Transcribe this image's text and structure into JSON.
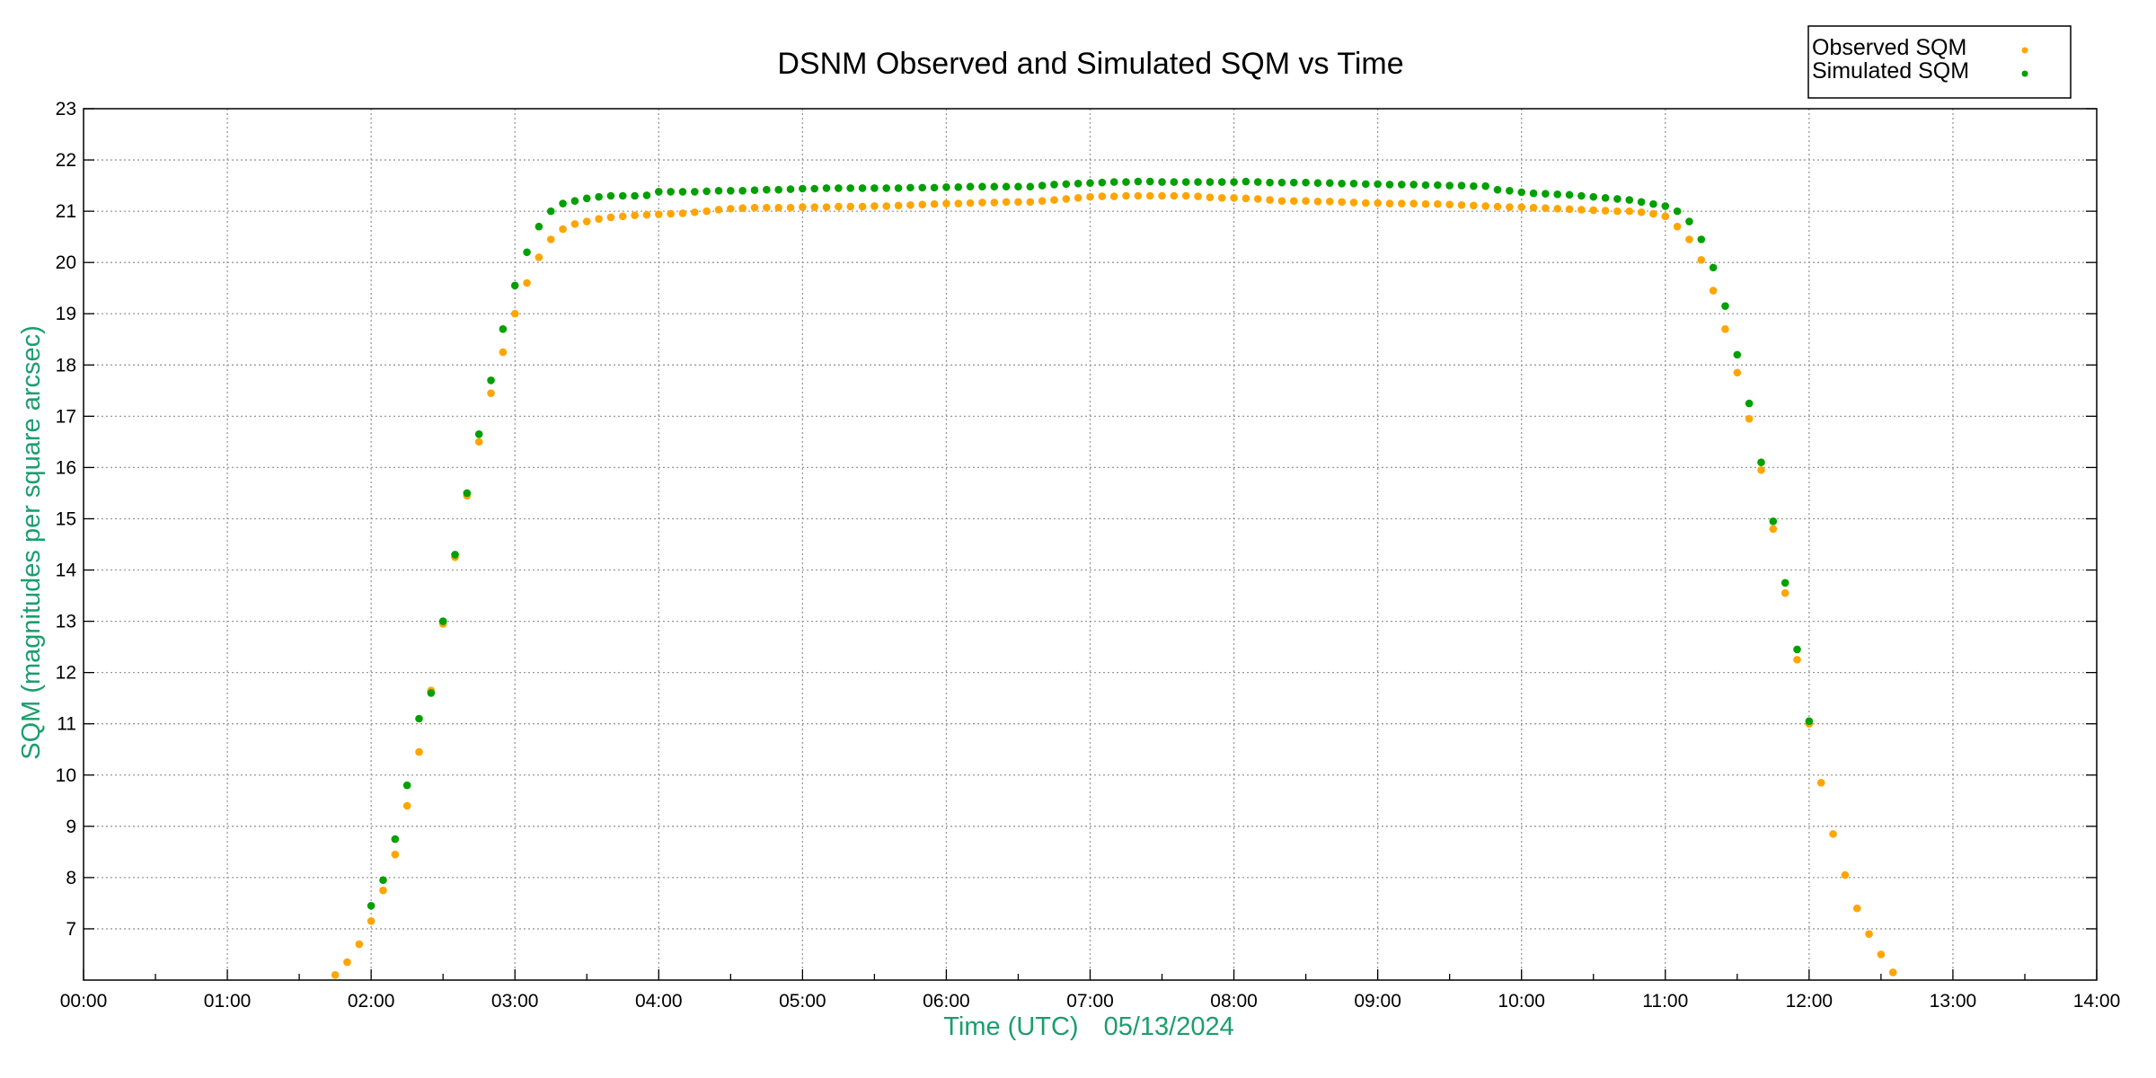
{
  "chart_data": {
    "type": "scatter",
    "title": "DSNM Observed and Simulated SQM vs Time",
    "xlabel": "Time (UTC)",
    "xlabel_date": "05/13/2024",
    "ylabel": "SQM (magnitudes per square arcsec)",
    "xlim": [
      "00:00",
      "14:00"
    ],
    "ylim": [
      6,
      23
    ],
    "x_ticks": [
      "00:00",
      "01:00",
      "02:00",
      "03:00",
      "04:00",
      "05:00",
      "06:00",
      "07:00",
      "08:00",
      "09:00",
      "10:00",
      "11:00",
      "12:00",
      "13:00",
      "14:00"
    ],
    "y_ticks": [
      "7",
      "8",
      "9",
      "10",
      "11",
      "12",
      "13",
      "14",
      "15",
      "16",
      "17",
      "18",
      "19",
      "20",
      "21",
      "22",
      "23"
    ],
    "grid": true,
    "legend_position": "top-right",
    "x": [
      "01:45",
      "01:50",
      "01:55",
      "02:00",
      "02:05",
      "02:10",
      "02:15",
      "02:20",
      "02:25",
      "02:30",
      "02:35",
      "02:40",
      "02:45",
      "02:50",
      "02:55",
      "03:00",
      "03:05",
      "03:10",
      "03:15",
      "03:20",
      "03:25",
      "03:30",
      "03:35",
      "03:40",
      "03:45",
      "03:50",
      "03:55",
      "04:00",
      "04:05",
      "04:10",
      "04:15",
      "04:20",
      "04:25",
      "04:30",
      "04:35",
      "04:40",
      "04:45",
      "04:50",
      "04:55",
      "05:00",
      "05:05",
      "05:10",
      "05:15",
      "05:20",
      "05:25",
      "05:30",
      "05:35",
      "05:40",
      "05:45",
      "05:50",
      "05:55",
      "06:00",
      "06:05",
      "06:10",
      "06:15",
      "06:20",
      "06:25",
      "06:30",
      "06:35",
      "06:40",
      "06:45",
      "06:50",
      "06:55",
      "07:00",
      "07:05",
      "07:10",
      "07:15",
      "07:20",
      "07:25",
      "07:30",
      "07:35",
      "07:40",
      "07:45",
      "07:50",
      "07:55",
      "08:00",
      "08:05",
      "08:10",
      "08:15",
      "08:20",
      "08:25",
      "08:30",
      "08:35",
      "08:40",
      "08:45",
      "08:50",
      "08:55",
      "09:00",
      "09:05",
      "09:10",
      "09:15",
      "09:20",
      "09:25",
      "09:30",
      "09:35",
      "09:40",
      "09:45",
      "09:50",
      "09:55",
      "10:00",
      "10:05",
      "10:10",
      "10:15",
      "10:20",
      "10:25",
      "10:30",
      "10:35",
      "10:40",
      "10:45",
      "10:50",
      "10:55",
      "11:00",
      "11:05",
      "11:10",
      "11:15",
      "11:20",
      "11:25",
      "11:30",
      "11:35",
      "11:40",
      "11:45",
      "11:50",
      "11:55",
      "12:00",
      "12:05",
      "12:10",
      "12:15",
      "12:20",
      "12:25",
      "12:30",
      "12:35"
    ],
    "series": [
      {
        "name": "Observed SQM",
        "color": "#ffa500",
        "values": [
          6.1,
          6.35,
          6.7,
          7.15,
          7.75,
          8.45,
          9.4,
          10.45,
          11.65,
          12.95,
          14.25,
          15.45,
          16.5,
          17.45,
          18.25,
          19.0,
          19.6,
          20.1,
          20.45,
          20.65,
          20.75,
          20.8,
          20.85,
          20.88,
          20.9,
          20.92,
          20.93,
          20.94,
          20.95,
          20.96,
          20.98,
          21.0,
          21.03,
          21.05,
          21.06,
          21.07,
          21.07,
          21.07,
          21.07,
          21.08,
          21.08,
          21.08,
          21.09,
          21.09,
          21.09,
          21.1,
          21.1,
          21.11,
          21.12,
          21.13,
          21.14,
          21.15,
          21.15,
          21.16,
          21.17,
          21.17,
          21.18,
          21.18,
          21.18,
          21.2,
          21.22,
          21.24,
          21.26,
          21.28,
          21.29,
          21.29,
          21.3,
          21.3,
          21.3,
          21.3,
          21.3,
          21.3,
          21.29,
          21.27,
          21.26,
          21.26,
          21.25,
          21.24,
          21.22,
          21.2,
          21.2,
          21.2,
          21.19,
          21.19,
          21.18,
          21.17,
          21.16,
          21.16,
          21.15,
          21.15,
          21.15,
          21.14,
          21.14,
          21.13,
          21.12,
          21.11,
          21.1,
          21.09,
          21.08,
          21.08,
          21.07,
          21.06,
          21.05,
          21.04,
          21.03,
          21.02,
          21.01,
          21.0,
          21.0,
          20.98,
          20.95,
          20.9,
          20.7,
          20.45,
          20.05,
          19.45,
          18.7,
          17.85,
          16.95,
          15.95,
          14.8,
          13.55,
          12.25,
          11.0,
          9.85,
          8.85,
          8.05,
          7.4,
          6.9,
          6.5,
          6.15
        ]
      },
      {
        "name": "Simulated SQM",
        "color": "#00a000",
        "values": [
          null,
          null,
          null,
          7.45,
          7.95,
          8.75,
          9.8,
          11.1,
          11.6,
          13.0,
          14.3,
          15.5,
          16.65,
          17.7,
          18.7,
          19.55,
          20.2,
          20.7,
          21.0,
          21.15,
          21.2,
          21.25,
          21.28,
          21.3,
          21.3,
          21.3,
          21.31,
          21.38,
          21.38,
          21.38,
          21.38,
          21.39,
          21.4,
          21.4,
          21.4,
          21.41,
          21.42,
          21.42,
          21.43,
          21.44,
          21.44,
          21.45,
          21.45,
          21.45,
          21.45,
          21.45,
          21.45,
          21.45,
          21.46,
          21.46,
          21.46,
          21.47,
          21.47,
          21.48,
          21.48,
          21.48,
          21.48,
          21.48,
          21.48,
          21.5,
          21.52,
          21.53,
          21.54,
          21.55,
          21.56,
          21.57,
          21.57,
          21.58,
          21.58,
          21.57,
          21.57,
          21.57,
          21.57,
          21.57,
          21.57,
          21.57,
          21.58,
          21.57,
          21.56,
          21.56,
          21.56,
          21.56,
          21.55,
          21.55,
          21.54,
          21.54,
          21.53,
          21.53,
          21.52,
          21.52,
          21.52,
          21.51,
          21.51,
          21.5,
          21.5,
          21.49,
          21.49,
          21.42,
          21.4,
          21.37,
          21.35,
          21.34,
          21.33,
          21.32,
          21.3,
          21.28,
          21.26,
          21.24,
          21.22,
          21.18,
          21.14,
          21.1,
          21.0,
          20.8,
          20.45,
          19.9,
          19.15,
          18.2,
          17.25,
          16.1,
          14.95,
          13.75,
          12.45,
          11.05,
          null,
          null,
          null,
          null,
          null,
          null,
          null
        ]
      }
    ]
  }
}
